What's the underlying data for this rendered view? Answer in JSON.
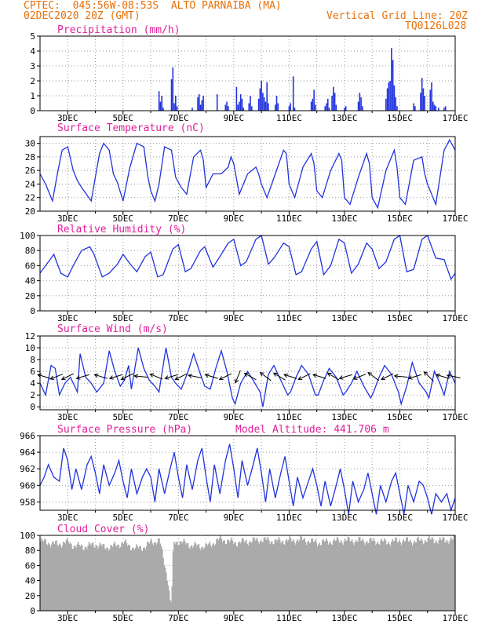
{
  "header": {
    "line1_left": "CPTEC:  045:56W-08:53S  ALTO PARNAIBA (MA)",
    "line2_left": "02DEC2020 20Z (GMT)",
    "line2_right": "Vertical Grid Line: 20Z",
    "line3_right": "TQ0126L028",
    "color": "#e8700a"
  },
  "colors": {
    "title": "#e0209a",
    "series": "#2233dd",
    "cloud": "#aaaaaa",
    "axis": "#000000",
    "arrow": "#000000"
  },
  "x_ticks": [
    "3DEC",
    "5DEC",
    "7DEC",
    "9DEC",
    "11DEC",
    "13DEC",
    "15DEC",
    "17DEC"
  ],
  "chart_data": [
    {
      "type": "bar",
      "title": "Precipitation (mm/h)",
      "x_label_days": [
        3,
        5,
        7,
        9,
        11,
        13,
        15,
        17
      ],
      "xlim_days": [
        2.0,
        17.0
      ],
      "ylim": [
        0,
        5
      ],
      "yticks": [
        0,
        1,
        2,
        3,
        4,
        5
      ],
      "bars": [
        [
          6.3,
          1.3
        ],
        [
          6.35,
          0.6
        ],
        [
          6.4,
          1.0
        ],
        [
          6.45,
          0.2
        ],
        [
          6.75,
          2.1
        ],
        [
          6.8,
          2.9
        ],
        [
          6.85,
          0.5
        ],
        [
          6.9,
          1.0
        ],
        [
          6.95,
          0.3
        ],
        [
          7.5,
          0.2
        ],
        [
          7.7,
          0.9
        ],
        [
          7.75,
          1.1
        ],
        [
          7.8,
          0.4
        ],
        [
          7.85,
          0.7
        ],
        [
          7.9,
          1.0
        ],
        [
          8.4,
          1.1
        ],
        [
          8.7,
          0.4
        ],
        [
          8.75,
          0.6
        ],
        [
          8.8,
          0.3
        ],
        [
          9.1,
          1.6
        ],
        [
          9.15,
          0.4
        ],
        [
          9.2,
          0.6
        ],
        [
          9.25,
          1.1
        ],
        [
          9.3,
          0.8
        ],
        [
          9.35,
          0.2
        ],
        [
          9.55,
          0.5
        ],
        [
          9.6,
          1.0
        ],
        [
          9.65,
          0.3
        ],
        [
          9.9,
          0.8
        ],
        [
          9.95,
          1.5
        ],
        [
          10.0,
          2.0
        ],
        [
          10.05,
          1.2
        ],
        [
          10.1,
          0.9
        ],
        [
          10.15,
          0.6
        ],
        [
          10.2,
          1.9
        ],
        [
          10.25,
          0.5
        ],
        [
          10.5,
          0.4
        ],
        [
          10.55,
          1.0
        ],
        [
          10.6,
          0.5
        ],
        [
          11.0,
          0.3
        ],
        [
          11.05,
          0.5
        ],
        [
          11.15,
          2.3
        ],
        [
          11.2,
          0.2
        ],
        [
          11.8,
          0.6
        ],
        [
          11.85,
          0.8
        ],
        [
          11.9,
          1.4
        ],
        [
          11.95,
          0.4
        ],
        [
          12.3,
          0.3
        ],
        [
          12.35,
          0.5
        ],
        [
          12.4,
          0.8
        ],
        [
          12.45,
          0.2
        ],
        [
          12.55,
          1.0
        ],
        [
          12.6,
          1.6
        ],
        [
          12.65,
          1.2
        ],
        [
          12.7,
          0.4
        ],
        [
          13.0,
          0.2
        ],
        [
          13.05,
          0.3
        ],
        [
          13.5,
          0.6
        ],
        [
          13.55,
          1.2
        ],
        [
          13.6,
          0.9
        ],
        [
          13.65,
          0.3
        ],
        [
          14.5,
          0.8
        ],
        [
          14.55,
          1.5
        ],
        [
          14.6,
          1.9
        ],
        [
          14.65,
          2.0
        ],
        [
          14.7,
          4.2
        ],
        [
          14.75,
          3.4
        ],
        [
          14.8,
          1.7
        ],
        [
          14.85,
          0.9
        ],
        [
          14.9,
          0.3
        ],
        [
          15.5,
          0.5
        ],
        [
          15.55,
          0.3
        ],
        [
          15.75,
          1.2
        ],
        [
          15.8,
          2.2
        ],
        [
          15.85,
          1.5
        ],
        [
          15.9,
          1.0
        ],
        [
          16.1,
          1.4
        ],
        [
          16.15,
          1.9
        ],
        [
          16.2,
          0.6
        ],
        [
          16.25,
          0.4
        ],
        [
          16.3,
          0.3
        ],
        [
          16.4,
          0.2
        ],
        [
          16.6,
          0.2
        ],
        [
          16.65,
          0.3
        ]
      ]
    },
    {
      "type": "line",
      "title": "Surface Temperature (nC)",
      "xlim_days": [
        2.0,
        17.0
      ],
      "ylim": [
        20,
        31
      ],
      "yticks": [
        20,
        22,
        24,
        26,
        28,
        30
      ],
      "x": [
        2.0,
        2.2,
        2.45,
        2.65,
        2.8,
        3.0,
        3.2,
        3.35,
        3.5,
        3.85,
        4.0,
        4.15,
        4.3,
        4.5,
        4.65,
        4.8,
        5.0,
        5.25,
        5.5,
        5.75,
        5.9,
        6.0,
        6.15,
        6.3,
        6.5,
        6.75,
        6.9,
        7.1,
        7.3,
        7.55,
        7.8,
        7.9,
        8.0,
        8.25,
        8.55,
        8.8,
        8.9,
        9.0,
        9.2,
        9.5,
        9.8,
        9.9,
        10.0,
        10.2,
        10.5,
        10.8,
        10.9,
        11.0,
        11.2,
        11.5,
        11.8,
        11.9,
        12.0,
        12.2,
        12.5,
        12.8,
        12.9,
        13.0,
        13.2,
        13.5,
        13.8,
        13.9,
        14.0,
        14.2,
        14.5,
        14.8,
        14.9,
        15.0,
        15.2,
        15.5,
        15.8,
        15.9,
        16.0,
        16.3,
        16.6,
        16.8,
        17.0
      ],
      "y": [
        25.5,
        24.0,
        21.5,
        26.0,
        29.0,
        29.5,
        26.0,
        24.5,
        23.5,
        21.5,
        25.0,
        28.5,
        30.0,
        29.0,
        25.5,
        24.2,
        21.5,
        26.5,
        30.0,
        29.5,
        25.0,
        23.0,
        21.5,
        24.0,
        29.5,
        29.0,
        25.0,
        23.5,
        22.5,
        28.0,
        29.0,
        27.5,
        23.5,
        25.5,
        25.5,
        26.5,
        28.0,
        27.0,
        22.5,
        25.5,
        26.5,
        25.5,
        24.0,
        22.0,
        25.5,
        29.0,
        28.5,
        24.0,
        22.0,
        26.5,
        28.5,
        27.0,
        23.0,
        22.0,
        26.0,
        28.5,
        27.5,
        22.0,
        21.0,
        25.0,
        28.5,
        27.0,
        22.0,
        20.5,
        26.0,
        29.0,
        26.5,
        22.0,
        21.0,
        27.5,
        28.0,
        25.5,
        24.0,
        21.0,
        29.0,
        30.5,
        29.0
      ]
    },
    {
      "type": "line",
      "title": "Relative Humidity (%)",
      "xlim_days": [
        2.0,
        17.0
      ],
      "ylim": [
        0,
        100
      ],
      "yticks": [
        0,
        20,
        40,
        60,
        80,
        100
      ],
      "x": [
        2.0,
        2.3,
        2.5,
        2.75,
        3.0,
        3.2,
        3.5,
        3.8,
        3.95,
        4.25,
        4.5,
        4.8,
        5.0,
        5.3,
        5.5,
        5.8,
        6.0,
        6.25,
        6.45,
        6.8,
        7.0,
        7.25,
        7.45,
        7.8,
        7.95,
        8.25,
        8.5,
        8.8,
        9.0,
        9.25,
        9.45,
        9.8,
        10.0,
        10.25,
        10.45,
        10.8,
        11.0,
        11.25,
        11.45,
        11.8,
        12.0,
        12.25,
        12.5,
        12.8,
        13.0,
        13.25,
        13.5,
        13.8,
        14.0,
        14.25,
        14.5,
        14.8,
        15.0,
        15.25,
        15.5,
        15.8,
        16.0,
        16.3,
        16.6,
        16.85,
        17.0
      ],
      "y": [
        50,
        65,
        75,
        50,
        45,
        60,
        80,
        85,
        75,
        45,
        50,
        62,
        75,
        60,
        52,
        72,
        78,
        45,
        48,
        82,
        88,
        52,
        56,
        80,
        85,
        58,
        72,
        90,
        95,
        60,
        65,
        95,
        100,
        62,
        70,
        90,
        85,
        48,
        52,
        82,
        92,
        48,
        60,
        95,
        90,
        50,
        62,
        90,
        82,
        56,
        65,
        95,
        100,
        52,
        55,
        95,
        100,
        70,
        68,
        42,
        50
      ]
    },
    {
      "type": "line",
      "title": "Surface Wind (m/s)",
      "xlim_days": [
        2.0,
        17.0
      ],
      "ylim": [
        -0.5,
        12
      ],
      "yticks": [
        0,
        2,
        4,
        6,
        8,
        10,
        12
      ],
      "x": [
        2.0,
        2.2,
        2.4,
        2.55,
        2.7,
        2.9,
        3.1,
        3.35,
        3.45,
        3.65,
        3.85,
        4.05,
        4.3,
        4.5,
        4.7,
        4.9,
        5.05,
        5.2,
        5.3,
        5.55,
        5.75,
        5.95,
        6.15,
        6.3,
        6.55,
        6.75,
        6.9,
        7.1,
        7.35,
        7.55,
        7.8,
        7.95,
        8.15,
        8.35,
        8.55,
        8.75,
        8.95,
        9.05,
        9.25,
        9.5,
        9.7,
        9.95,
        10.05,
        10.25,
        10.45,
        10.7,
        10.95,
        11.05,
        11.25,
        11.45,
        11.7,
        11.95,
        12.05,
        12.25,
        12.45,
        12.7,
        12.95,
        13.05,
        13.25,
        13.45,
        13.7,
        13.95,
        14.05,
        14.25,
        14.45,
        14.7,
        14.95,
        15.05,
        15.25,
        15.45,
        15.7,
        15.95,
        16.05,
        16.25,
        16.45,
        16.6,
        16.8,
        17.0
      ],
      "y": [
        4.0,
        2.0,
        7.0,
        6.5,
        2.0,
        4.0,
        5.0,
        2.5,
        9.0,
        5.0,
        4.0,
        2.5,
        4.0,
        9.5,
        6.0,
        3.5,
        4.5,
        7.0,
        3.0,
        10.0,
        6.5,
        4.5,
        3.5,
        2.5,
        10.0,
        5.0,
        4.0,
        3.0,
        6.0,
        9.0,
        5.5,
        3.5,
        3.0,
        6.5,
        9.5,
        6.0,
        1.5,
        0.5,
        4.0,
        6.0,
        4.5,
        2.5,
        0.0,
        5.5,
        7.0,
        4.5,
        2.0,
        2.5,
        5.0,
        7.0,
        5.5,
        2.0,
        2.0,
        4.5,
        6.5,
        5.0,
        2.0,
        2.5,
        4.0,
        6.0,
        3.5,
        1.5,
        2.5,
        5.0,
        7.0,
        5.5,
        2.5,
        0.5,
        3.5,
        7.5,
        4.0,
        2.5,
        1.5,
        6.0,
        4.0,
        2.0,
        6.0,
        4.0
      ]
    },
    {
      "type": "line",
      "title": "Surface Pressure (hPa)",
      "subtitle": "Model Altitude: 441.706 m",
      "xlim_days": [
        2.0,
        17.0
      ],
      "ylim": [
        957.0,
        966.0
      ],
      "yticks": [
        958,
        960,
        962,
        964,
        966
      ],
      "x": [
        2.0,
        2.15,
        2.3,
        2.5,
        2.7,
        2.85,
        3.0,
        3.15,
        3.3,
        3.5,
        3.7,
        3.85,
        4.0,
        4.15,
        4.3,
        4.5,
        4.7,
        4.85,
        5.0,
        5.15,
        5.3,
        5.5,
        5.7,
        5.85,
        6.0,
        6.15,
        6.3,
        6.5,
        6.7,
        6.85,
        7.0,
        7.15,
        7.3,
        7.5,
        7.7,
        7.85,
        8.0,
        8.15,
        8.3,
        8.5,
        8.7,
        8.85,
        9.0,
        9.15,
        9.3,
        9.5,
        9.7,
        9.85,
        10.0,
        10.15,
        10.3,
        10.5,
        10.7,
        10.85,
        11.0,
        11.15,
        11.3,
        11.5,
        11.7,
        11.85,
        12.0,
        12.15,
        12.3,
        12.5,
        12.7,
        12.85,
        13.0,
        13.15,
        13.3,
        13.5,
        13.7,
        13.85,
        14.0,
        14.15,
        14.3,
        14.5,
        14.7,
        14.85,
        15.0,
        15.15,
        15.3,
        15.5,
        15.7,
        15.85,
        16.0,
        16.15,
        16.3,
        16.5,
        16.7,
        16.85,
        17.0
      ],
      "y": [
        960.0,
        961.0,
        962.5,
        961.0,
        960.5,
        964.5,
        963.0,
        959.5,
        962.0,
        959.5,
        962.5,
        963.5,
        961.5,
        959.0,
        962.5,
        960.0,
        961.5,
        963.0,
        960.5,
        958.5,
        962.0,
        959.0,
        961.0,
        962.0,
        961.0,
        958.0,
        962.0,
        959.0,
        962.0,
        964.0,
        961.0,
        958.5,
        962.5,
        959.5,
        963.0,
        964.5,
        961.0,
        958.0,
        962.5,
        959.0,
        963.0,
        965.0,
        962.0,
        958.5,
        963.0,
        960.0,
        962.5,
        964.5,
        961.5,
        958.0,
        962.0,
        958.5,
        961.5,
        963.5,
        960.5,
        957.5,
        961.0,
        958.5,
        960.5,
        962.0,
        960.0,
        957.5,
        960.5,
        957.5,
        960.0,
        962.0,
        959.5,
        956.5,
        960.5,
        958.0,
        959.5,
        961.5,
        959.0,
        956.5,
        960.0,
        958.0,
        960.5,
        961.5,
        959.0,
        956.5,
        960.0,
        958.0,
        960.5,
        960.0,
        958.5,
        956.5,
        959.0,
        958.0,
        959.0,
        957.0,
        958.5
      ]
    },
    {
      "type": "bar",
      "title": "Cloud Cover (%)",
      "xlim_days": [
        2.0,
        17.0
      ],
      "ylim": [
        0,
        100
      ],
      "yticks": [
        0,
        20,
        40,
        60,
        80,
        100
      ],
      "profile_x": [
        2.0,
        2.3,
        2.6,
        3.0,
        3.2,
        3.6,
        4.0,
        4.3,
        4.6,
        5.0,
        5.4,
        5.8,
        6.0,
        6.3,
        6.6,
        6.7,
        6.75,
        6.8,
        7.0,
        7.5,
        8.0,
        8.5,
        9.0,
        9.5,
        10.0,
        10.5,
        11.0,
        11.5,
        12.0,
        12.5,
        13.0,
        13.5,
        14.0,
        14.5,
        15.0,
        15.5,
        16.0,
        16.5,
        17.0
      ],
      "profile_y": [
        92,
        90,
        88,
        91,
        86,
        85,
        88,
        84,
        85,
        90,
        82,
        85,
        91,
        93,
        40,
        5,
        30,
        90,
        92,
        86,
        85,
        95,
        90,
        92,
        94,
        92,
        93,
        94,
        90,
        92,
        93,
        93,
        92,
        91,
        93,
        92,
        94,
        93,
        95
      ]
    }
  ],
  "wind_arrows": [
    {
      "x": 2.15,
      "dir": [
        -1,
        0.3
      ]
    },
    {
      "x": 2.6,
      "dir": [
        -1,
        -0.4
      ]
    },
    {
      "x": 3.0,
      "dir": [
        -1,
        -0.5
      ]
    },
    {
      "x": 3.55,
      "dir": [
        -1,
        -0.3
      ]
    },
    {
      "x": 4.2,
      "dir": [
        -1,
        0.3
      ]
    },
    {
      "x": 4.75,
      "dir": [
        -1,
        -0.3
      ]
    },
    {
      "x": 5.15,
      "dir": [
        -1,
        -0.5
      ]
    },
    {
      "x": 5.65,
      "dir": [
        -1,
        0.1
      ]
    },
    {
      "x": 6.2,
      "dir": [
        -1,
        0.4
      ]
    },
    {
      "x": 6.75,
      "dir": [
        -1,
        -0.3
      ]
    },
    {
      "x": 7.1,
      "dir": [
        -1,
        -0.5
      ]
    },
    {
      "x": 7.6,
      "dir": [
        -1,
        0.2
      ]
    },
    {
      "x": 8.2,
      "dir": [
        -1,
        0.3
      ]
    },
    {
      "x": 8.7,
      "dir": [
        -1,
        -0.5
      ]
    },
    {
      "x": 9.15,
      "dir": [
        -0.4,
        -1
      ]
    },
    {
      "x": 9.6,
      "dir": [
        -0.9,
        0.5
      ]
    },
    {
      "x": 10.15,
      "dir": [
        -0.8,
        0.6
      ]
    },
    {
      "x": 10.65,
      "dir": [
        -1,
        0.6
      ]
    },
    {
      "x": 11.05,
      "dir": [
        -1,
        0.3
      ]
    },
    {
      "x": 11.55,
      "dir": [
        -1,
        -0.5
      ]
    },
    {
      "x": 12.1,
      "dir": [
        -1,
        0.3
      ]
    },
    {
      "x": 12.6,
      "dir": [
        -1,
        0.6
      ]
    },
    {
      "x": 13.05,
      "dir": [
        -1,
        -0.3
      ]
    },
    {
      "x": 13.55,
      "dir": [
        -1,
        -0.4
      ]
    },
    {
      "x": 14.05,
      "dir": [
        -0.8,
        0.6
      ]
    },
    {
      "x": 14.55,
      "dir": [
        -1,
        -0.5
      ]
    },
    {
      "x": 15.05,
      "dir": [
        -1,
        0.1
      ]
    },
    {
      "x": 15.55,
      "dir": [
        -1,
        -0.3
      ]
    },
    {
      "x": 16.05,
      "dir": [
        -0.7,
        0.7
      ]
    },
    {
      "x": 16.55,
      "dir": [
        -1,
        0.3
      ]
    },
    {
      "x": 16.95,
      "dir": [
        -1,
        0.2
      ]
    }
  ]
}
